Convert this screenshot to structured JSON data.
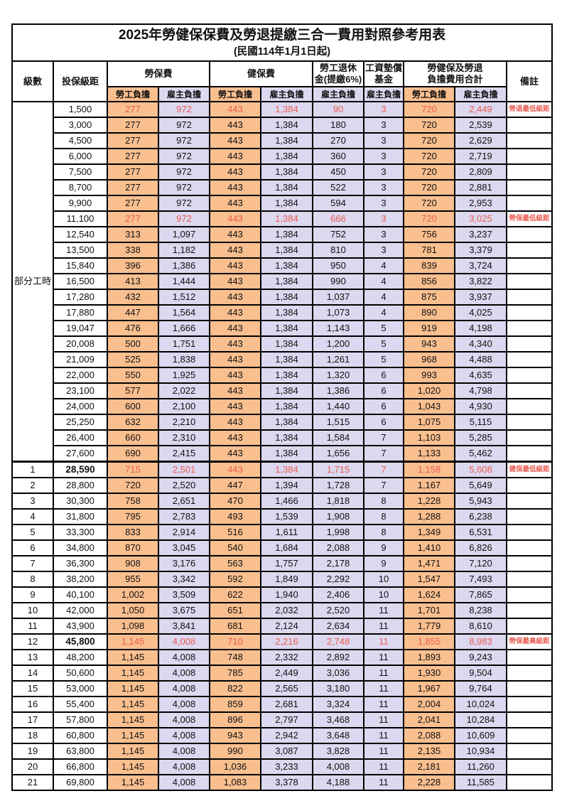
{
  "title": {
    "line1": "2025年勞健保保費及勞退提繳三合一費用對照參考用表",
    "line2": "(民國114年1月1日起)"
  },
  "colors": {
    "employee_col_bg": "#FABF8F",
    "employer_col_bg": "#DCD8EF",
    "highlight_red": "#E95C52",
    "border": "#000000"
  },
  "header": {
    "level": "級數",
    "bracket": "投保級距",
    "labor_ins": "勞保費",
    "health_ins": "健保費",
    "pension_line1": "勞工退休",
    "pension_line2": "金(提繳6%)",
    "wage_fund_line1": "工資墊償",
    "wage_fund_line2": "基金",
    "total_line1": "勞健保及勞退",
    "total_line2": "負擔費用合計",
    "remark": "備註",
    "employee_share": "勞工負擔",
    "employer_share": "雇主負擔"
  },
  "part_time": {
    "label": "部分工時",
    "row_count": 23
  },
  "section_break_index": 23,
  "rows": [
    {
      "level": "",
      "bracket": "1,500",
      "c": [
        "277",
        "972",
        "443",
        "1,384",
        "90",
        "3",
        "720",
        "2,449"
      ],
      "remark": "勞退最低級距",
      "red": true,
      "bold": false
    },
    {
      "level": "",
      "bracket": "3,000",
      "c": [
        "277",
        "972",
        "443",
        "1,384",
        "180",
        "3",
        "720",
        "2,539"
      ],
      "remark": "",
      "red": false,
      "bold": false
    },
    {
      "level": "",
      "bracket": "4,500",
      "c": [
        "277",
        "972",
        "443",
        "1,384",
        "270",
        "3",
        "720",
        "2,629"
      ],
      "remark": "",
      "red": false,
      "bold": false
    },
    {
      "level": "",
      "bracket": "6,000",
      "c": [
        "277",
        "972",
        "443",
        "1,384",
        "360",
        "3",
        "720",
        "2,719"
      ],
      "remark": "",
      "red": false,
      "bold": false
    },
    {
      "level": "",
      "bracket": "7,500",
      "c": [
        "277",
        "972",
        "443",
        "1,384",
        "450",
        "3",
        "720",
        "2,809"
      ],
      "remark": "",
      "red": false,
      "bold": false
    },
    {
      "level": "",
      "bracket": "8,700",
      "c": [
        "277",
        "972",
        "443",
        "1,384",
        "522",
        "3",
        "720",
        "2,881"
      ],
      "remark": "",
      "red": false,
      "bold": false
    },
    {
      "level": "",
      "bracket": "9,900",
      "c": [
        "277",
        "972",
        "443",
        "1,384",
        "594",
        "3",
        "720",
        "2,953"
      ],
      "remark": "",
      "red": false,
      "bold": false
    },
    {
      "level": "",
      "bracket": "11,100",
      "c": [
        "277",
        "972",
        "443",
        "1,384",
        "666",
        "3",
        "720",
        "3,025"
      ],
      "remark": "勞保最低級距",
      "red": true,
      "bold": false
    },
    {
      "level": "",
      "bracket": "12,540",
      "c": [
        "313",
        "1,097",
        "443",
        "1,384",
        "752",
        "3",
        "756",
        "3,237"
      ],
      "remark": "",
      "red": false,
      "bold": false
    },
    {
      "level": "",
      "bracket": "13,500",
      "c": [
        "338",
        "1,182",
        "443",
        "1,384",
        "810",
        "3",
        "781",
        "3,379"
      ],
      "remark": "",
      "red": false,
      "bold": false
    },
    {
      "level": "",
      "bracket": "15,840",
      "c": [
        "396",
        "1,386",
        "443",
        "1,384",
        "950",
        "4",
        "839",
        "3,724"
      ],
      "remark": "",
      "red": false,
      "bold": false
    },
    {
      "level": "",
      "bracket": "16,500",
      "c": [
        "413",
        "1,444",
        "443",
        "1,384",
        "990",
        "4",
        "856",
        "3,822"
      ],
      "remark": "",
      "red": false,
      "bold": false
    },
    {
      "level": "",
      "bracket": "17,280",
      "c": [
        "432",
        "1,512",
        "443",
        "1,384",
        "1,037",
        "4",
        "875",
        "3,937"
      ],
      "remark": "",
      "red": false,
      "bold": false
    },
    {
      "level": "",
      "bracket": "17,880",
      "c": [
        "447",
        "1,564",
        "443",
        "1,384",
        "1,073",
        "4",
        "890",
        "4,025"
      ],
      "remark": "",
      "red": false,
      "bold": false
    },
    {
      "level": "",
      "bracket": "19,047",
      "c": [
        "476",
        "1,666",
        "443",
        "1,384",
        "1,143",
        "5",
        "919",
        "4,198"
      ],
      "remark": "",
      "red": false,
      "bold": false
    },
    {
      "level": "",
      "bracket": "20,008",
      "c": [
        "500",
        "1,751",
        "443",
        "1,384",
        "1,200",
        "5",
        "943",
        "4,340"
      ],
      "remark": "",
      "red": false,
      "bold": false
    },
    {
      "level": "",
      "bracket": "21,009",
      "c": [
        "525",
        "1,838",
        "443",
        "1,384",
        "1,261",
        "5",
        "968",
        "4,488"
      ],
      "remark": "",
      "red": false,
      "bold": false
    },
    {
      "level": "",
      "bracket": "22,000",
      "c": [
        "550",
        "1,925",
        "443",
        "1,384",
        "1,320",
        "6",
        "993",
        "4,635"
      ],
      "remark": "",
      "red": false,
      "bold": false
    },
    {
      "level": "",
      "bracket": "23,100",
      "c": [
        "577",
        "2,022",
        "443",
        "1,384",
        "1,386",
        "6",
        "1,020",
        "4,798"
      ],
      "remark": "",
      "red": false,
      "bold": false
    },
    {
      "level": "",
      "bracket": "24,000",
      "c": [
        "600",
        "2,100",
        "443",
        "1,384",
        "1,440",
        "6",
        "1,043",
        "4,930"
      ],
      "remark": "",
      "red": false,
      "bold": false
    },
    {
      "level": "",
      "bracket": "25,250",
      "c": [
        "632",
        "2,210",
        "443",
        "1,384",
        "1,515",
        "6",
        "1,075",
        "5,115"
      ],
      "remark": "",
      "red": false,
      "bold": false
    },
    {
      "level": "",
      "bracket": "26,400",
      "c": [
        "660",
        "2,310",
        "443",
        "1,384",
        "1,584",
        "7",
        "1,103",
        "5,285"
      ],
      "remark": "",
      "red": false,
      "bold": false
    },
    {
      "level": "",
      "bracket": "27,600",
      "c": [
        "690",
        "2,415",
        "443",
        "1,384",
        "1,656",
        "7",
        "1,133",
        "5,462"
      ],
      "remark": "",
      "red": false,
      "bold": false
    },
    {
      "level": "1",
      "bracket": "28,590",
      "c": [
        "715",
        "2,501",
        "443",
        "1,384",
        "1,715",
        "7",
        "1,158",
        "5,608"
      ],
      "remark": "健保最低級距",
      "red": true,
      "bold": true
    },
    {
      "level": "2",
      "bracket": "28,800",
      "c": [
        "720",
        "2,520",
        "447",
        "1,394",
        "1,728",
        "7",
        "1,167",
        "5,649"
      ],
      "remark": "",
      "red": false,
      "bold": false
    },
    {
      "level": "3",
      "bracket": "30,300",
      "c": [
        "758",
        "2,651",
        "470",
        "1,466",
        "1,818",
        "8",
        "1,228",
        "5,943"
      ],
      "remark": "",
      "red": false,
      "bold": false
    },
    {
      "level": "4",
      "bracket": "31,800",
      "c": [
        "795",
        "2,783",
        "493",
        "1,539",
        "1,908",
        "8",
        "1,288",
        "6,238"
      ],
      "remark": "",
      "red": false,
      "bold": false
    },
    {
      "level": "5",
      "bracket": "33,300",
      "c": [
        "833",
        "2,914",
        "516",
        "1,611",
        "1,998",
        "8",
        "1,349",
        "6,531"
      ],
      "remark": "",
      "red": false,
      "bold": false
    },
    {
      "level": "6",
      "bracket": "34,800",
      "c": [
        "870",
        "3,045",
        "540",
        "1,684",
        "2,088",
        "9",
        "1,410",
        "6,826"
      ],
      "remark": "",
      "red": false,
      "bold": false
    },
    {
      "level": "7",
      "bracket": "36,300",
      "c": [
        "908",
        "3,176",
        "563",
        "1,757",
        "2,178",
        "9",
        "1,471",
        "7,120"
      ],
      "remark": "",
      "red": false,
      "bold": false
    },
    {
      "level": "8",
      "bracket": "38,200",
      "c": [
        "955",
        "3,342",
        "592",
        "1,849",
        "2,292",
        "10",
        "1,547",
        "7,493"
      ],
      "remark": "",
      "red": false,
      "bold": false
    },
    {
      "level": "9",
      "bracket": "40,100",
      "c": [
        "1,002",
        "3,509",
        "622",
        "1,940",
        "2,406",
        "10",
        "1,624",
        "7,865"
      ],
      "remark": "",
      "red": false,
      "bold": false
    },
    {
      "level": "10",
      "bracket": "42,000",
      "c": [
        "1,050",
        "3,675",
        "651",
        "2,032",
        "2,520",
        "11",
        "1,701",
        "8,238"
      ],
      "remark": "",
      "red": false,
      "bold": false
    },
    {
      "level": "11",
      "bracket": "43,900",
      "c": [
        "1,098",
        "3,841",
        "681",
        "2,124",
        "2,634",
        "11",
        "1,779",
        "8,610"
      ],
      "remark": "",
      "red": false,
      "bold": false
    },
    {
      "level": "12",
      "bracket": "45,800",
      "c": [
        "1,145",
        "4,008",
        "710",
        "2,216",
        "2,748",
        "11",
        "1,855",
        "8,983"
      ],
      "remark": "勞保最高級距",
      "red": true,
      "bold": true
    },
    {
      "level": "13",
      "bracket": "48,200",
      "c": [
        "1,145",
        "4,008",
        "748",
        "2,332",
        "2,892",
        "11",
        "1,893",
        "9,243"
      ],
      "remark": "",
      "red": false,
      "bold": false
    },
    {
      "level": "14",
      "bracket": "50,600",
      "c": [
        "1,145",
        "4,008",
        "785",
        "2,449",
        "3,036",
        "11",
        "1,930",
        "9,504"
      ],
      "remark": "",
      "red": false,
      "bold": false
    },
    {
      "level": "15",
      "bracket": "53,000",
      "c": [
        "1,145",
        "4,008",
        "822",
        "2,565",
        "3,180",
        "11",
        "1,967",
        "9,764"
      ],
      "remark": "",
      "red": false,
      "bold": false
    },
    {
      "level": "16",
      "bracket": "55,400",
      "c": [
        "1,145",
        "4,008",
        "859",
        "2,681",
        "3,324",
        "11",
        "2,004",
        "10,024"
      ],
      "remark": "",
      "red": false,
      "bold": false
    },
    {
      "level": "17",
      "bracket": "57,800",
      "c": [
        "1,145",
        "4,008",
        "896",
        "2,797",
        "3,468",
        "11",
        "2,041",
        "10,284"
      ],
      "remark": "",
      "red": false,
      "bold": false
    },
    {
      "level": "18",
      "bracket": "60,800",
      "c": [
        "1,145",
        "4,008",
        "943",
        "2,942",
        "3,648",
        "11",
        "2,088",
        "10,609"
      ],
      "remark": "",
      "red": false,
      "bold": false
    },
    {
      "level": "19",
      "bracket": "63,800",
      "c": [
        "1,145",
        "4,008",
        "990",
        "3,087",
        "3,828",
        "11",
        "2,135",
        "10,934"
      ],
      "remark": "",
      "red": false,
      "bold": false
    },
    {
      "level": "20",
      "bracket": "66,800",
      "c": [
        "1,145",
        "4,008",
        "1,036",
        "3,233",
        "4,008",
        "11",
        "2,181",
        "11,260"
      ],
      "remark": "",
      "red": false,
      "bold": false
    },
    {
      "level": "21",
      "bracket": "69,800",
      "c": [
        "1,145",
        "4,008",
        "1,083",
        "3,378",
        "4,188",
        "11",
        "2,228",
        "11,585"
      ],
      "remark": "",
      "red": false,
      "bold": false
    }
  ]
}
